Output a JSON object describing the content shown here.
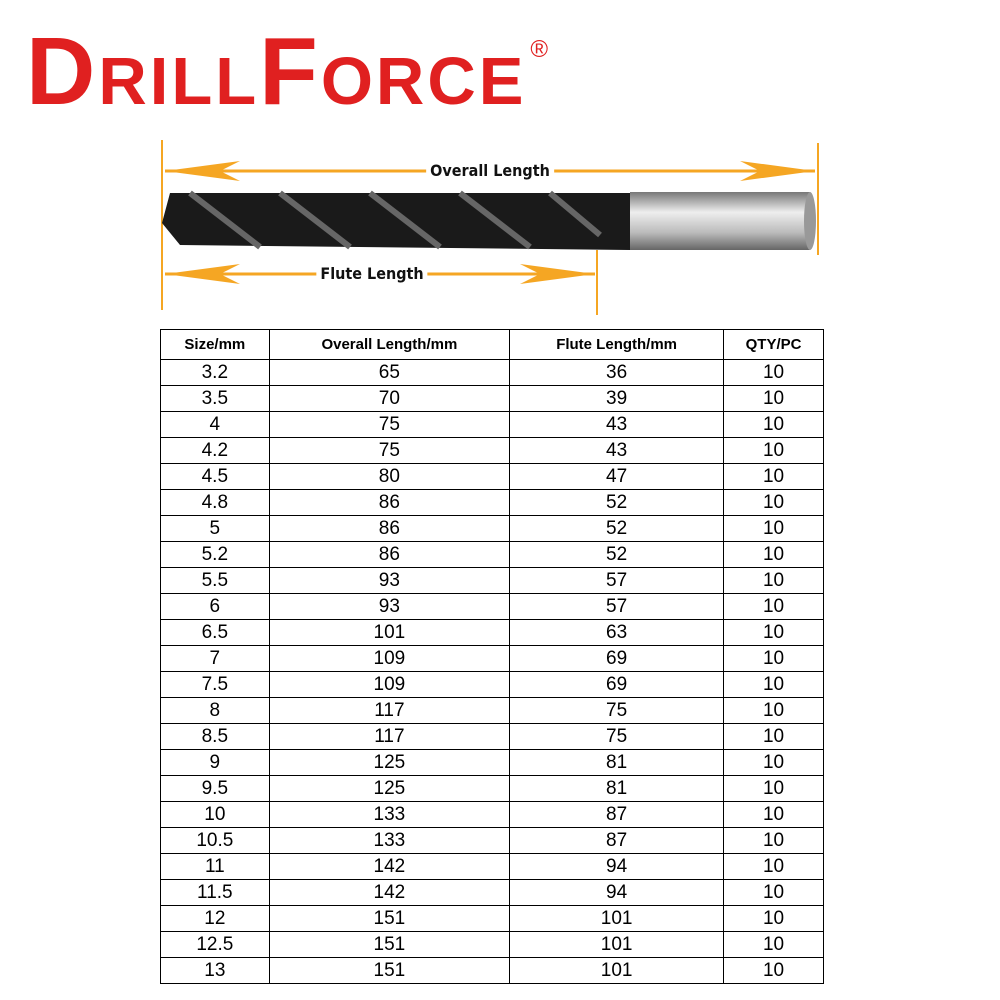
{
  "brand": {
    "name": "DrillForce",
    "registered_mark": "®",
    "color": "#e02020"
  },
  "diagram": {
    "overall_label": "Overall Length",
    "flute_label": "Flute Length",
    "arrow_color": "#f5a623"
  },
  "table": {
    "headers": [
      "Size/mm",
      "Overall Length/mm",
      "Flute Length/mm",
      "QTY/PC"
    ],
    "rows": [
      [
        "3.2",
        "65",
        "36",
        "10"
      ],
      [
        "3.5",
        "70",
        "39",
        "10"
      ],
      [
        "4",
        "75",
        "43",
        "10"
      ],
      [
        "4.2",
        "75",
        "43",
        "10"
      ],
      [
        "4.5",
        "80",
        "47",
        "10"
      ],
      [
        "4.8",
        "86",
        "52",
        "10"
      ],
      [
        "5",
        "86",
        "52",
        "10"
      ],
      [
        "5.2",
        "86",
        "52",
        "10"
      ],
      [
        "5.5",
        "93",
        "57",
        "10"
      ],
      [
        "6",
        "93",
        "57",
        "10"
      ],
      [
        "6.5",
        "101",
        "63",
        "10"
      ],
      [
        "7",
        "109",
        "69",
        "10"
      ],
      [
        "7.5",
        "109",
        "69",
        "10"
      ],
      [
        "8",
        "117",
        "75",
        "10"
      ],
      [
        "8.5",
        "117",
        "75",
        "10"
      ],
      [
        "9",
        "125",
        "81",
        "10"
      ],
      [
        "9.5",
        "125",
        "81",
        "10"
      ],
      [
        "10",
        "133",
        "87",
        "10"
      ],
      [
        "10.5",
        "133",
        "87",
        "10"
      ],
      [
        "11",
        "142",
        "94",
        "10"
      ],
      [
        "11.5",
        "142",
        "94",
        "10"
      ],
      [
        "12",
        "151",
        "101",
        "10"
      ],
      [
        "12.5",
        "151",
        "101",
        "10"
      ],
      [
        "13",
        "151",
        "101",
        "10"
      ]
    ]
  }
}
